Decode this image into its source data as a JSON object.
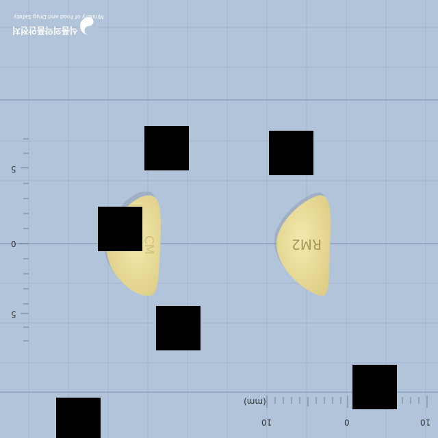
{
  "logo": {
    "korean_text": "식품의약품안전처",
    "english_text": "Ministry of Food and Drug Safety",
    "emblem_icon": "mfds-emblem-icon"
  },
  "vertical_scale": {
    "labels": [
      "5",
      "0",
      "5"
    ]
  },
  "horizontal_scale": {
    "unit": "(mm)",
    "labels": [
      "10",
      "0",
      "10"
    ]
  },
  "pills": {
    "left_imprint": "CM",
    "right_imprint": "RM2",
    "color": "#e9dc9a"
  },
  "colors": {
    "background": "#b2c4d9",
    "grid": "#9fb3cc",
    "redaction": "#000000"
  }
}
